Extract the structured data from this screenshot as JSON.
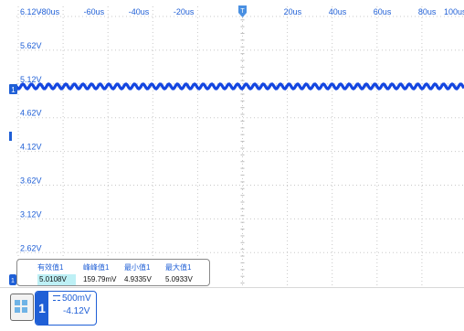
{
  "time_axis": {
    "labels": [
      "-80us",
      "-60us",
      "-40us",
      "-20us",
      "20us",
      "40us",
      "60us",
      "80us",
      "100us"
    ]
  },
  "volt_axis": {
    "labels": [
      "6.12V",
      "5.62V",
      "5.12V",
      "4.62V",
      "4.12V",
      "3.62V",
      "3.12V",
      "2.62V"
    ]
  },
  "trigger": {
    "marker_label": "T"
  },
  "channel1": {
    "number": "1",
    "scale": "500mV",
    "offset": "-4.12V",
    "color": "#1446e0"
  },
  "measurements": [
    {
      "title": "有效值1",
      "value": "5.0108V"
    },
    {
      "title": "峰峰值1",
      "value": "159.79mV"
    },
    {
      "title": "最小值1",
      "value": "4.9335V"
    },
    {
      "title": "最大值1",
      "value": "5.0933V"
    }
  ],
  "colors": {
    "accent": "#1f5fd6",
    "highlight": "#bdf0f5"
  }
}
